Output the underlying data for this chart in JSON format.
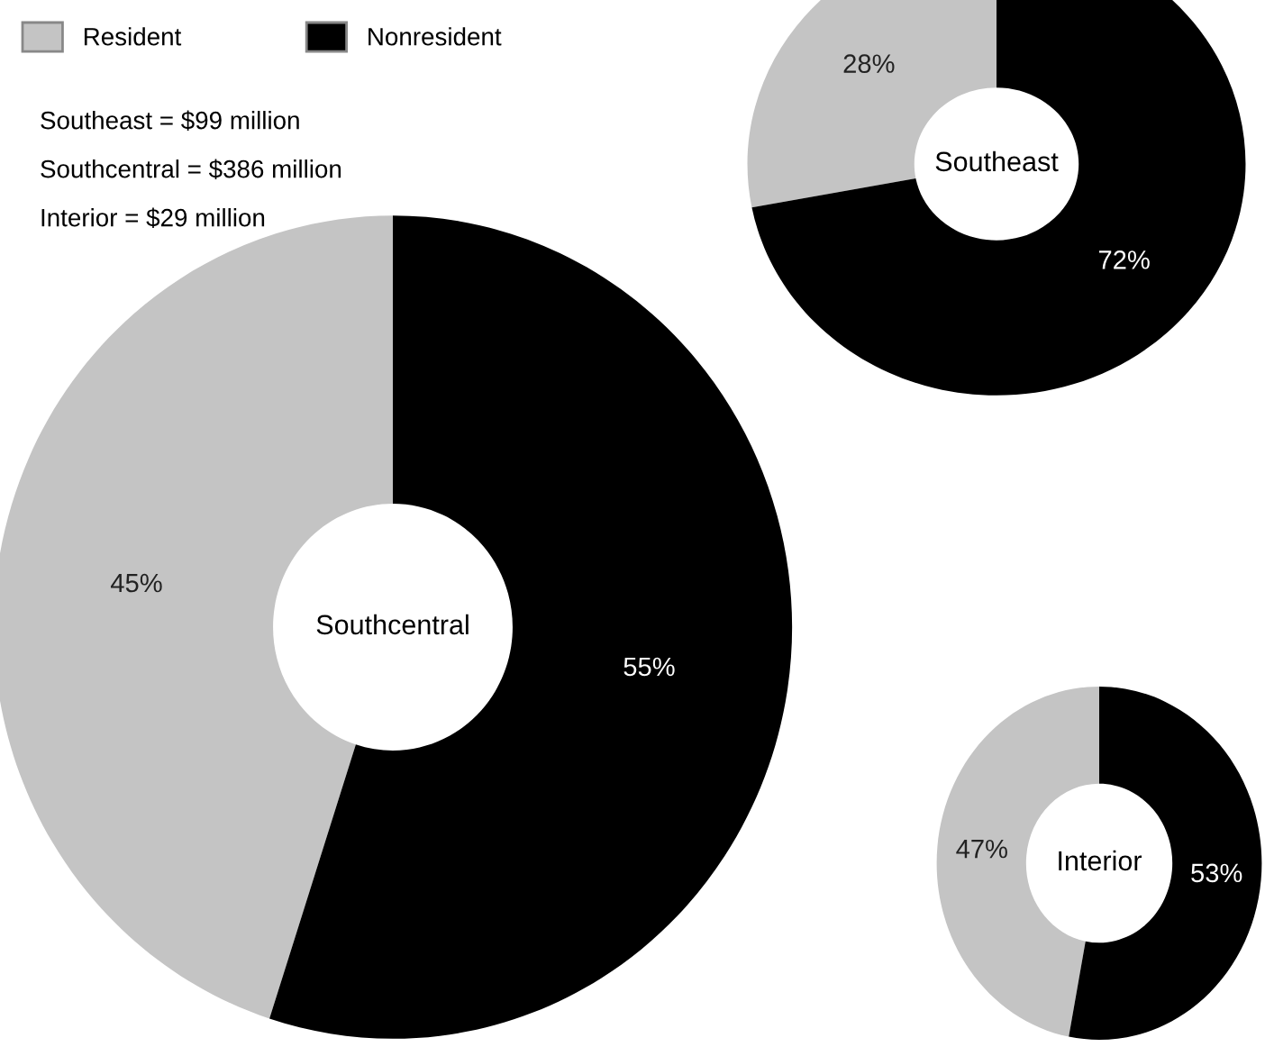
{
  "chart_data": [
    {
      "type": "donut",
      "title": "Southcentral",
      "categories": [
        "Resident",
        "Nonresident"
      ],
      "values": [
        45,
        55
      ],
      "colors": [
        "#c4c4c4",
        "#000000"
      ],
      "value_labels": [
        "45%",
        "55%"
      ],
      "legend": "top left",
      "annotations": [
        "Southeast = $99 million",
        "Southcentral = $386 million",
        "Interior = $29 million"
      ]
    },
    {
      "type": "donut",
      "title": "Interior",
      "categories": [
        null,
        null
      ],
      "values": [
        47,
        53
      ],
      "colors": [
        "#c4c4c4",
        "#000000"
      ],
      "value_labels": [
        "47%",
        "53%"
      ]
    },
    {
      "type": "donut",
      "title": "Southeast",
      "categories": [
        null,
        null
      ],
      "values": [
        28,
        72
      ],
      "colors": [
        "#c4c4c4",
        "#000000"
      ],
      "value_labels": [
        "28%",
        "72%"
      ]
    }
  ]
}
